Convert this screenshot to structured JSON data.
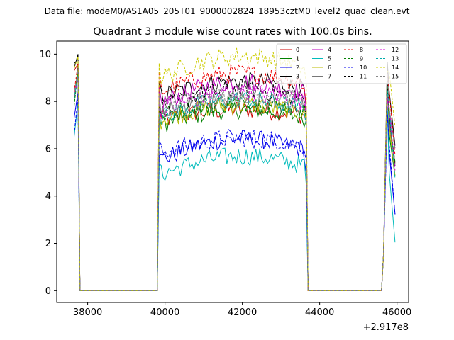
{
  "chart_data": {
    "type": "line",
    "suptitle": "Data file: modeM0/AS1A05_205T01_9000002824_18953cztM0_level2_quad_clean.evt",
    "title": "Quadrant 3 module wise count rates with 100.0s bins.",
    "xlabel": "",
    "ylabel": "",
    "x_offset_label": "+2.917e8",
    "xlim": [
      37200,
      46300
    ],
    "ylim": [
      -0.5,
      10.55
    ],
    "x_ticks": [
      38000,
      40000,
      42000,
      44000,
      46000
    ],
    "x_tick_labels": [
      "38000",
      "40000",
      "42000",
      "44000",
      "46000"
    ],
    "y_ticks": [
      0,
      2,
      4,
      6,
      8,
      10
    ],
    "y_tick_labels": [
      "0",
      "2",
      "4",
      "6",
      "8",
      "10"
    ],
    "legend_position": "top-right",
    "segments": [
      {
        "start": 37650,
        "end": 37750
      },
      {
        "start": 39850,
        "end": 43650
      },
      {
        "start": 45650,
        "end": 45950
      }
    ],
    "series": [
      {
        "name": "0",
        "color": "#cc0000",
        "dash": false,
        "start": [
          9.3,
          9.6
        ],
        "level": 7.2,
        "slope": 0.35,
        "end": 7.4
      },
      {
        "name": "1",
        "color": "#008000",
        "dash": false,
        "start": [
          8.0,
          9.5
        ],
        "level": 7.0,
        "slope": 0.5,
        "end": 7.2
      },
      {
        "name": "2",
        "color": "#0000ee",
        "dash": false,
        "start": [
          7.3,
          8.4
        ],
        "level": 5.5,
        "slope": 0.7,
        "end": 5.0
      },
      {
        "name": "3",
        "color": "#000000",
        "dash": false,
        "start": [
          9.4,
          10.0
        ],
        "level": 8.2,
        "slope": 0.5,
        "end": 7.8
      },
      {
        "name": "4",
        "color": "#bb00bb",
        "dash": false,
        "start": [
          8.5,
          8.9
        ],
        "level": 7.9,
        "slope": 0.7,
        "end": 7.6
      },
      {
        "name": "5",
        "color": "#00bbbb",
        "dash": false,
        "start": [
          6.5,
          8.0
        ],
        "level": 4.9,
        "slope": 0.6,
        "end": 4.5
      },
      {
        "name": "6",
        "color": "#bbbb00",
        "dash": false,
        "start": [
          8.2,
          9.2
        ],
        "level": 7.2,
        "slope": 0.5,
        "end": 7.1
      },
      {
        "name": "7",
        "color": "#777777",
        "dash": false,
        "start": [
          8.0,
          9.3
        ],
        "level": 7.5,
        "slope": 0.4,
        "end": 7.2
      },
      {
        "name": "8",
        "color": "#ee0000",
        "dash": true,
        "start": [
          8.4,
          9.6
        ],
        "level": 8.4,
        "slope": 0.6,
        "end": 7.9
      },
      {
        "name": "9",
        "color": "#008000",
        "dash": true,
        "start": [
          7.8,
          9.3
        ],
        "level": 7.4,
        "slope": 0.4,
        "end": 7.3
      },
      {
        "name": "10",
        "color": "#0000ee",
        "dash": true,
        "start": [
          6.6,
          8.2
        ],
        "level": 5.8,
        "slope": 0.5,
        "end": 5.5
      },
      {
        "name": "11",
        "color": "#000000",
        "dash": true,
        "start": [
          9.6,
          9.8
        ],
        "level": 7.7,
        "slope": 0.6,
        "end": 7.4
      },
      {
        "name": "12",
        "color": "#dd00dd",
        "dash": true,
        "start": [
          8.2,
          9.0
        ],
        "level": 7.6,
        "slope": 0.6,
        "end": 7.5
      },
      {
        "name": "13",
        "color": "#00aaaa",
        "dash": true,
        "start": [
          8.1,
          9.1
        ],
        "level": 7.3,
        "slope": 0.6,
        "end": 7.0
      },
      {
        "name": "14",
        "color": "#cccc00",
        "dash": true,
        "start": [
          9.4,
          9.9
        ],
        "level": 9.0,
        "slope": 0.7,
        "end": 8.8
      },
      {
        "name": "15",
        "color": "#888888",
        "dash": true,
        "start": [
          8.3,
          9.4
        ],
        "level": 7.7,
        "slope": 0.5,
        "end": 7.6
      }
    ]
  }
}
